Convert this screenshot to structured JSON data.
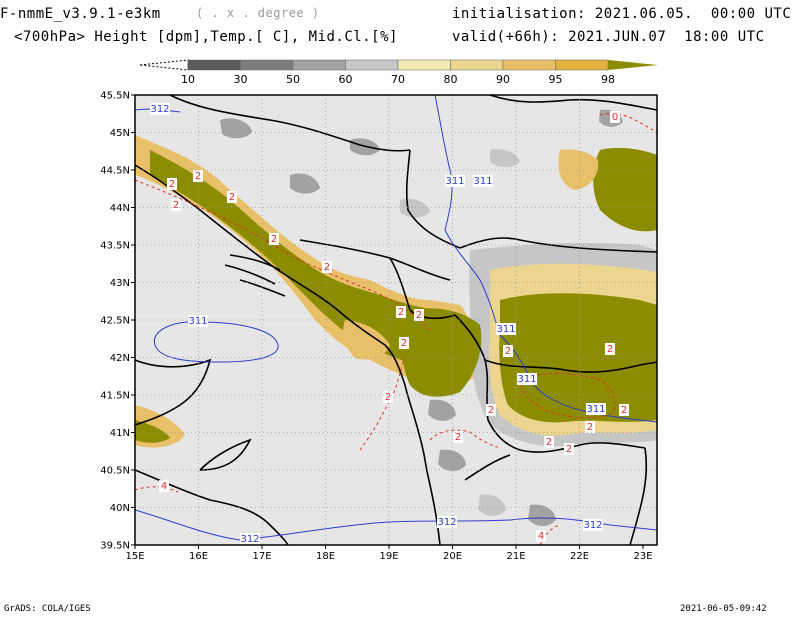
{
  "header": {
    "model_title": "F-nmmE_v3.9.1-e3km",
    "model_res": "( . x . degree )",
    "variables": "<700hPa> Height [dpm],Temp.[ C], Mid.Cl.[%]",
    "initialisation": "initialisation: 2021.06.05.  00:00 UTC",
    "valid": "valid(+66h): 2021.JUN.07  18:00 UTC"
  },
  "colorbar": {
    "labels": [
      "10",
      "30",
      "50",
      "60",
      "70",
      "80",
      "90",
      "95",
      "98"
    ],
    "colors": [
      "#ffffff",
      "#5a5a5a",
      "#7c7c7c",
      "#a2a2a2",
      "#c6c6c6",
      "#f0eab0",
      "#ecd58e",
      "#e8c06a",
      "#e4b040",
      "#8c8c00"
    ]
  },
  "map": {
    "lat_labels": [
      "45.5N",
      "45N",
      "44.5N",
      "44N",
      "43.5N",
      "43N",
      "42.5N",
      "42N",
      "41.5N",
      "41N",
      "40.5N",
      "40N",
      "39.5N"
    ],
    "lon_labels": [
      "15E",
      "16E",
      "17E",
      "18E",
      "19E",
      "20E",
      "21E",
      "22E",
      "23E"
    ],
    "background": "#e6e6e6",
    "height_contours": {
      "color": "#2a3fcc",
      "labels": [
        "312",
        "311",
        "311",
        "311",
        "311",
        "311",
        "311",
        "312",
        "312",
        "312"
      ]
    },
    "temp_contours": {
      "color": "#e03030",
      "labels": [
        "2",
        "2",
        "2",
        "2",
        "2",
        "2",
        "2",
        "2",
        "2",
        "2",
        "2",
        "2",
        "2",
        "2",
        "2",
        "2",
        "2",
        "2",
        "4",
        "4",
        "0"
      ]
    }
  },
  "footer": {
    "left": "GrADS: COLA/IGES",
    "right": "2021-06-05-09:42"
  }
}
